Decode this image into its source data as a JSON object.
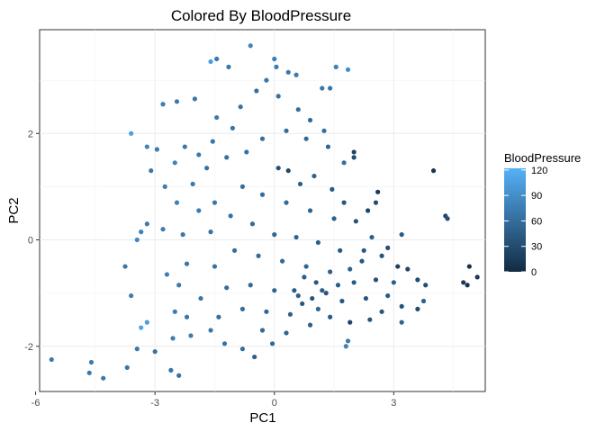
{
  "chart_data": {
    "type": "scatter",
    "title": "Colored By BloodPressure",
    "xlabel": "PC1",
    "ylabel": "PC2",
    "xlim": [
      -5.9,
      5.3
    ],
    "ylim": [
      -2.85,
      3.95
    ],
    "x_ticks": [
      -6,
      -3,
      0,
      3
    ],
    "x_tick_labels": [
      "-6",
      "-3",
      "0",
      "3"
    ],
    "y_ticks": [
      -2,
      0,
      2
    ],
    "y_tick_labels": [
      "-2",
      "0",
      "2"
    ],
    "grid": true,
    "color_scale": {
      "name": "BloodPressure",
      "min": 0,
      "max": 122,
      "low_color": "#132B43",
      "high_color": "#56B1F7",
      "breaks": [
        0,
        30,
        60,
        90,
        120
      ],
      "break_labels": [
        "0",
        "30",
        "60",
        "90",
        "120"
      ],
      "legend_position": "right"
    },
    "points": [
      {
        "x": -5.6,
        "y": -2.25,
        "c": 72
      },
      {
        "x": -4.6,
        "y": -2.3,
        "c": 74
      },
      {
        "x": -4.65,
        "y": -2.5,
        "c": 70
      },
      {
        "x": -4.3,
        "y": -2.6,
        "c": 72
      },
      {
        "x": -3.7,
        "y": -2.4,
        "c": 68
      },
      {
        "x": -3.45,
        "y": -2.05,
        "c": 70
      },
      {
        "x": -3.0,
        "y": -2.1,
        "c": 66
      },
      {
        "x": -2.6,
        "y": -2.45,
        "c": 68
      },
      {
        "x": -2.4,
        "y": -2.55,
        "c": 66
      },
      {
        "x": -3.35,
        "y": -1.65,
        "c": 110
      },
      {
        "x": -3.2,
        "y": -1.55,
        "c": 104
      },
      {
        "x": -3.6,
        "y": -1.05,
        "c": 74
      },
      {
        "x": -3.75,
        "y": -0.5,
        "c": 70
      },
      {
        "x": -3.45,
        "y": 0.0,
        "c": 86
      },
      {
        "x": -3.35,
        "y": 0.15,
        "c": 78
      },
      {
        "x": -3.2,
        "y": 0.3,
        "c": 72
      },
      {
        "x": -3.6,
        "y": 2.0,
        "c": 106
      },
      {
        "x": -3.2,
        "y": 1.75,
        "c": 80
      },
      {
        "x": -2.95,
        "y": 1.7,
        "c": 74
      },
      {
        "x": -3.1,
        "y": 1.3,
        "c": 70
      },
      {
        "x": -2.8,
        "y": 2.55,
        "c": 74
      },
      {
        "x": -2.45,
        "y": 2.6,
        "c": 72
      },
      {
        "x": -2.0,
        "y": 2.65,
        "c": 70
      },
      {
        "x": -1.6,
        "y": 3.35,
        "c": 104
      },
      {
        "x": -1.45,
        "y": 3.4,
        "c": 72
      },
      {
        "x": -1.15,
        "y": 3.25,
        "c": 70
      },
      {
        "x": -0.6,
        "y": 3.65,
        "c": 84
      },
      {
        "x": 0.0,
        "y": 3.4,
        "c": 76
      },
      {
        "x": 0.05,
        "y": 3.25,
        "c": 74
      },
      {
        "x": 0.35,
        "y": 3.15,
        "c": 70
      },
      {
        "x": 0.55,
        "y": 3.1,
        "c": 72
      },
      {
        "x": 1.55,
        "y": 3.25,
        "c": 78
      },
      {
        "x": 1.85,
        "y": 3.2,
        "c": 90
      },
      {
        "x": 1.2,
        "y": 2.85,
        "c": 70
      },
      {
        "x": 1.4,
        "y": 2.85,
        "c": 66
      },
      {
        "x": 2.0,
        "y": 1.65,
        "c": 22
      },
      {
        "x": 2.0,
        "y": 1.55,
        "c": 30
      },
      {
        "x": 1.75,
        "y": 1.45,
        "c": 62
      },
      {
        "x": 4.0,
        "y": 1.3,
        "c": 8
      },
      {
        "x": 4.3,
        "y": 0.45,
        "c": 28
      },
      {
        "x": 4.35,
        "y": 0.4,
        "c": 32
      },
      {
        "x": 2.6,
        "y": 0.9,
        "c": 14
      },
      {
        "x": 2.55,
        "y": 0.7,
        "c": 30
      },
      {
        "x": 2.35,
        "y": 0.55,
        "c": 22
      },
      {
        "x": 3.2,
        "y": 0.1,
        "c": 44
      },
      {
        "x": 2.85,
        "y": -0.15,
        "c": 32
      },
      {
        "x": 3.1,
        "y": -0.5,
        "c": 18
      },
      {
        "x": 3.35,
        "y": -0.55,
        "c": 24
      },
      {
        "x": 3.6,
        "y": -0.75,
        "c": 28
      },
      {
        "x": 3.8,
        "y": -0.85,
        "c": 32
      },
      {
        "x": 3.75,
        "y": -1.15,
        "c": 50
      },
      {
        "x": 3.2,
        "y": -1.25,
        "c": 36
      },
      {
        "x": 3.6,
        "y": -1.3,
        "c": 30
      },
      {
        "x": 4.9,
        "y": -0.5,
        "c": 6
      },
      {
        "x": 5.1,
        "y": -0.7,
        "c": 12
      },
      {
        "x": 4.75,
        "y": -0.8,
        "c": 14
      },
      {
        "x": 4.85,
        "y": -0.85,
        "c": 8
      },
      {
        "x": 3.2,
        "y": -1.55,
        "c": 52
      },
      {
        "x": 2.4,
        "y": -1.5,
        "c": 38
      },
      {
        "x": 1.9,
        "y": -1.55,
        "c": 24
      },
      {
        "x": 1.1,
        "y": -1.3,
        "c": 54
      },
      {
        "x": 1.85,
        "y": -1.9,
        "c": 74
      },
      {
        "x": 1.8,
        "y": -2.0,
        "c": 80
      },
      {
        "x": -0.5,
        "y": -2.2,
        "c": 48
      },
      {
        "x": -0.05,
        "y": -1.95,
        "c": 56
      },
      {
        "x": -0.8,
        "y": -2.05,
        "c": 60
      },
      {
        "x": -1.25,
        "y": -1.95,
        "c": 66
      },
      {
        "x": -1.6,
        "y": -1.7,
        "c": 70
      },
      {
        "x": -2.1,
        "y": -1.8,
        "c": 74
      },
      {
        "x": -2.55,
        "y": -1.85,
        "c": 76
      },
      {
        "x": -2.2,
        "y": -1.45,
        "c": 70
      },
      {
        "x": -2.5,
        "y": -1.35,
        "c": 74
      },
      {
        "x": -1.85,
        "y": -1.1,
        "c": 68
      },
      {
        "x": -2.4,
        "y": -0.85,
        "c": 72
      },
      {
        "x": -2.7,
        "y": -0.65,
        "c": 76
      },
      {
        "x": -2.2,
        "y": -0.45,
        "c": 70
      },
      {
        "x": -2.8,
        "y": 0.2,
        "c": 74
      },
      {
        "x": -2.3,
        "y": 0.1,
        "c": 70
      },
      {
        "x": -1.6,
        "y": 0.15,
        "c": 66
      },
      {
        "x": -1.9,
        "y": 0.55,
        "c": 72
      },
      {
        "x": -2.45,
        "y": 0.7,
        "c": 78
      },
      {
        "x": -1.5,
        "y": 0.7,
        "c": 70
      },
      {
        "x": -2.75,
        "y": 1.0,
        "c": 74
      },
      {
        "x": -2.05,
        "y": 1.05,
        "c": 70
      },
      {
        "x": -1.7,
        "y": 1.35,
        "c": 66
      },
      {
        "x": -2.5,
        "y": 1.45,
        "c": 80
      },
      {
        "x": -1.9,
        "y": 1.6,
        "c": 72
      },
      {
        "x": -2.25,
        "y": 1.75,
        "c": 70
      },
      {
        "x": -1.55,
        "y": 1.85,
        "c": 68
      },
      {
        "x": -1.2,
        "y": 1.55,
        "c": 64
      },
      {
        "x": -1.05,
        "y": 2.1,
        "c": 68
      },
      {
        "x": -1.45,
        "y": 2.3,
        "c": 72
      },
      {
        "x": -0.85,
        "y": 2.5,
        "c": 66
      },
      {
        "x": -0.45,
        "y": 2.8,
        "c": 62
      },
      {
        "x": -0.2,
        "y": 3.0,
        "c": 68
      },
      {
        "x": 0.1,
        "y": 2.7,
        "c": 64
      },
      {
        "x": 0.6,
        "y": 2.45,
        "c": 60
      },
      {
        "x": 0.9,
        "y": 2.25,
        "c": 58
      },
      {
        "x": 1.25,
        "y": 2.05,
        "c": 62
      },
      {
        "x": 1.35,
        "y": 1.75,
        "c": 54
      },
      {
        "x": 0.8,
        "y": 1.9,
        "c": 56
      },
      {
        "x": 0.3,
        "y": 2.05,
        "c": 60
      },
      {
        "x": -0.3,
        "y": 1.9,
        "c": 62
      },
      {
        "x": -0.7,
        "y": 1.65,
        "c": 64
      },
      {
        "x": 0.35,
        "y": 1.3,
        "c": 26
      },
      {
        "x": 0.1,
        "y": 1.35,
        "c": 34
      },
      {
        "x": 0.65,
        "y": 1.05,
        "c": 46
      },
      {
        "x": 1.0,
        "y": 1.2,
        "c": 50
      },
      {
        "x": 1.45,
        "y": 0.95,
        "c": 44
      },
      {
        "x": 1.75,
        "y": 0.7,
        "c": 40
      },
      {
        "x": 2.05,
        "y": 0.35,
        "c": 36
      },
      {
        "x": 1.5,
        "y": 0.4,
        "c": 48
      },
      {
        "x": 0.9,
        "y": 0.55,
        "c": 52
      },
      {
        "x": 0.3,
        "y": 0.7,
        "c": 56
      },
      {
        "x": -0.3,
        "y": 0.85,
        "c": 60
      },
      {
        "x": -0.8,
        "y": 1.0,
        "c": 62
      },
      {
        "x": -1.1,
        "y": 0.45,
        "c": 64
      },
      {
        "x": -0.55,
        "y": 0.3,
        "c": 58
      },
      {
        "x": 0.0,
        "y": 0.1,
        "c": 54
      },
      {
        "x": 0.55,
        "y": 0.05,
        "c": 50
      },
      {
        "x": 1.1,
        "y": -0.05,
        "c": 46
      },
      {
        "x": 1.65,
        "y": -0.2,
        "c": 42
      },
      {
        "x": 2.2,
        "y": -0.4,
        "c": 38
      },
      {
        "x": 2.55,
        "y": -0.75,
        "c": 34
      },
      {
        "x": 2.0,
        "y": -0.8,
        "c": 44
      },
      {
        "x": 1.4,
        "y": -0.6,
        "c": 48
      },
      {
        "x": 0.8,
        "y": -0.5,
        "c": 52
      },
      {
        "x": 0.2,
        "y": -0.4,
        "c": 56
      },
      {
        "x": -0.4,
        "y": -0.3,
        "c": 60
      },
      {
        "x": -1.0,
        "y": -0.2,
        "c": 62
      },
      {
        "x": -1.5,
        "y": -0.5,
        "c": 64
      },
      {
        "x": -1.2,
        "y": -0.9,
        "c": 60
      },
      {
        "x": -0.6,
        "y": -0.85,
        "c": 56
      },
      {
        "x": 0.0,
        "y": -0.95,
        "c": 52
      },
      {
        "x": 0.6,
        "y": -1.05,
        "c": 48
      },
      {
        "x": 1.2,
        "y": -0.95,
        "c": 44
      },
      {
        "x": 1.7,
        "y": -1.15,
        "c": 40
      },
      {
        "x": 2.3,
        "y": -1.1,
        "c": 36
      },
      {
        "x": 2.7,
        "y": -1.35,
        "c": 38
      },
      {
        "x": 0.4,
        "y": -1.4,
        "c": 50
      },
      {
        "x": -0.2,
        "y": -1.35,
        "c": 54
      },
      {
        "x": -0.8,
        "y": -1.3,
        "c": 58
      },
      {
        "x": -1.4,
        "y": -1.45,
        "c": 62
      },
      {
        "x": -0.3,
        "y": -1.7,
        "c": 56
      },
      {
        "x": 0.3,
        "y": -1.75,
        "c": 52
      },
      {
        "x": 0.9,
        "y": -1.6,
        "c": 48
      },
      {
        "x": 1.4,
        "y": -1.45,
        "c": 44
      },
      {
        "x": 0.7,
        "y": -1.2,
        "c": 40
      },
      {
        "x": 0.95,
        "y": -1.1,
        "c": 36
      },
      {
        "x": 1.05,
        "y": -0.8,
        "c": 42
      },
      {
        "x": 0.75,
        "y": -0.7,
        "c": 46
      },
      {
        "x": 1.3,
        "y": -1.0,
        "c": 38
      },
      {
        "x": 0.5,
        "y": -0.95,
        "c": 44
      },
      {
        "x": 1.6,
        "y": -0.85,
        "c": 46
      },
      {
        "x": 1.9,
        "y": -0.55,
        "c": 50
      },
      {
        "x": 2.45,
        "y": 0.05,
        "c": 46
      },
      {
        "x": 2.25,
        "y": -0.2,
        "c": 42
      },
      {
        "x": 2.7,
        "y": -0.3,
        "c": 38
      },
      {
        "x": 3.0,
        "y": -0.8,
        "c": 46
      },
      {
        "x": 2.85,
        "y": -1.05,
        "c": 42
      }
    ]
  }
}
